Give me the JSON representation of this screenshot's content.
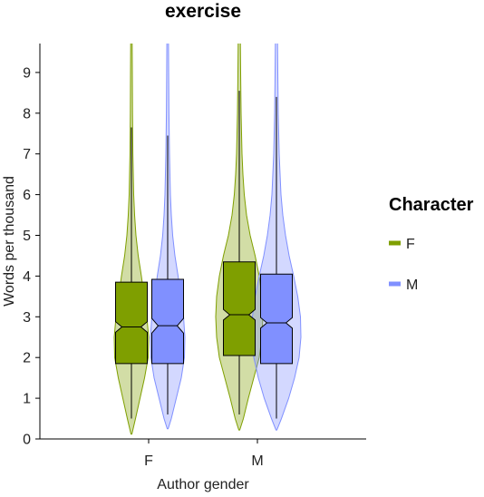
{
  "chart_data": {
    "type": "violin-box",
    "title": "exercise",
    "xlabel": "Author gender",
    "ylabel": "Words per thousand",
    "ylim": [
      0,
      9.75
    ],
    "yticks": [
      "0",
      "1",
      "2",
      "3",
      "4",
      "5",
      "6",
      "7",
      "8",
      "9"
    ],
    "categories": [
      "F",
      "M"
    ],
    "legend": {
      "title": "Character",
      "position": "right",
      "items": [
        {
          "label": "F",
          "color": "#7f9f00"
        },
        {
          "label": "M",
          "color": "#8090ff"
        }
      ]
    },
    "series": [
      {
        "name": "F",
        "color": "#7f9f00",
        "groups": [
          {
            "category": "F",
            "violin_min": 0.12,
            "violin_max": 9.75,
            "whisker_low": 0.5,
            "q1": 1.85,
            "median": 2.75,
            "q3": 3.85,
            "whisker_high": 7.65,
            "notch_low": 2.62,
            "notch_high": 2.88,
            "density": [
              [
                0.12,
                0.5
              ],
              [
                0.5,
                4.5
              ],
              [
                1.0,
                9.5
              ],
              [
                1.5,
                14.5
              ],
              [
                2.0,
                18.5
              ],
              [
                2.5,
                19.0
              ],
              [
                3.0,
                17.0
              ],
              [
                3.5,
                14.0
              ],
              [
                4.0,
                11.0
              ],
              [
                4.5,
                7.5
              ],
              [
                5.0,
                5.0
              ],
              [
                5.5,
                3.5
              ],
              [
                6.0,
                2.5
              ],
              [
                7.0,
                1.6
              ],
              [
                8.0,
                1.2
              ],
              [
                9.0,
                1.0
              ],
              [
                9.75,
                0.8
              ]
            ]
          },
          {
            "category": "M",
            "violin_min": 0.22,
            "violin_max": 9.75,
            "whisker_low": 0.6,
            "q1": 2.05,
            "median": 3.05,
            "q3": 4.35,
            "whisker_high": 8.55,
            "notch_low": 2.92,
            "notch_high": 3.18,
            "density": [
              [
                0.22,
                0.5
              ],
              [
                0.5,
                4.5
              ],
              [
                1.0,
                10.0
              ],
              [
                1.5,
                16.0
              ],
              [
                2.0,
                22.0
              ],
              [
                2.5,
                25.0
              ],
              [
                3.0,
                26.0
              ],
              [
                3.5,
                25.0
              ],
              [
                4.0,
                22.0
              ],
              [
                4.5,
                17.5
              ],
              [
                5.0,
                12.0
              ],
              [
                5.5,
                8.0
              ],
              [
                6.0,
                5.5
              ],
              [
                6.5,
                4.0
              ],
              [
                7.0,
                3.0
              ],
              [
                8.0,
                2.0
              ],
              [
                9.0,
                1.5
              ],
              [
                9.75,
                1.2
              ]
            ]
          }
        ]
      },
      {
        "name": "M",
        "color": "#8090ff",
        "groups": [
          {
            "category": "F",
            "violin_min": 0.25,
            "violin_max": 9.75,
            "whisker_low": 0.6,
            "q1": 1.85,
            "median": 2.78,
            "q3": 3.92,
            "whisker_high": 7.45,
            "notch_low": 2.6,
            "notch_high": 2.96,
            "density": [
              [
                0.25,
                0.5
              ],
              [
                0.5,
                4.0
              ],
              [
                1.0,
                9.5
              ],
              [
                1.5,
                15.0
              ],
              [
                2.0,
                18.5
              ],
              [
                2.5,
                19.0
              ],
              [
                3.0,
                17.5
              ],
              [
                3.5,
                14.5
              ],
              [
                4.0,
                11.5
              ],
              [
                4.5,
                8.0
              ],
              [
                5.0,
                5.5
              ],
              [
                5.5,
                4.0
              ],
              [
                6.0,
                3.0
              ],
              [
                7.0,
                2.0
              ],
              [
                8.0,
                1.4
              ],
              [
                9.0,
                1.1
              ],
              [
                9.75,
                0.9
              ]
            ]
          },
          {
            "category": "M",
            "violin_min": 0.22,
            "violin_max": 9.75,
            "whisker_low": 0.5,
            "q1": 1.85,
            "median": 2.85,
            "q3": 4.05,
            "whisker_high": 8.4,
            "notch_low": 2.72,
            "notch_high": 2.98,
            "density": [
              [
                0.22,
                0.5
              ],
              [
                0.5,
                5.5
              ],
              [
                1.0,
                13.5
              ],
              [
                1.5,
                20.0
              ],
              [
                2.0,
                25.0
              ],
              [
                2.5,
                27.0
              ],
              [
                3.0,
                26.5
              ],
              [
                3.5,
                23.5
              ],
              [
                4.0,
                19.0
              ],
              [
                4.5,
                14.0
              ],
              [
                5.0,
                10.0
              ],
              [
                5.5,
                7.0
              ],
              [
                6.0,
                5.0
              ],
              [
                7.0,
                3.0
              ],
              [
                8.0,
                2.0
              ],
              [
                9.0,
                1.5
              ],
              [
                9.75,
                1.2
              ]
            ]
          }
        ]
      }
    ]
  }
}
